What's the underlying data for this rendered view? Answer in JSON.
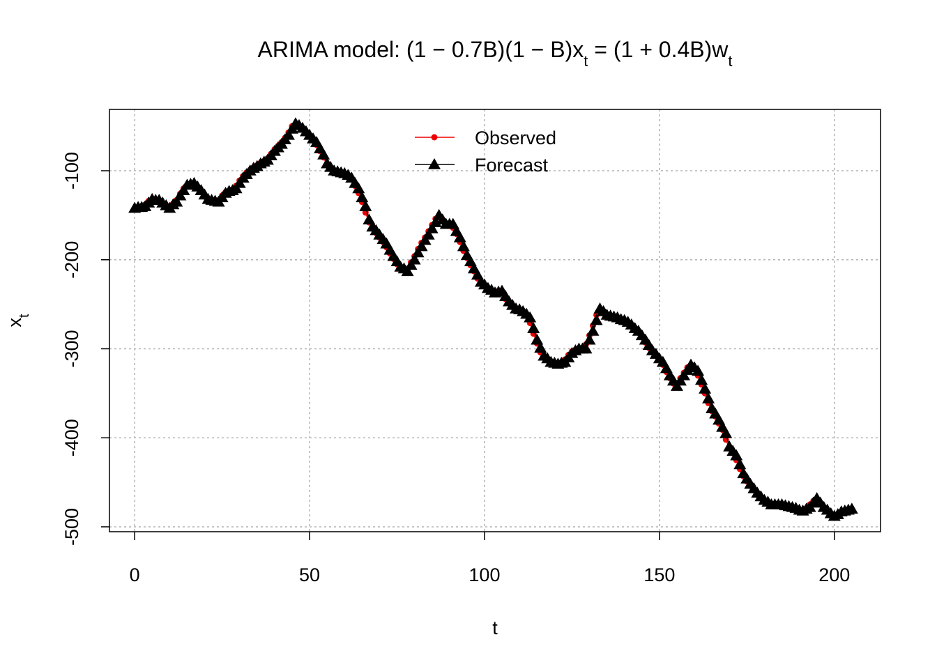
{
  "chart_data": {
    "type": "line",
    "title": [
      "ARIMA model: (1 − 0.7B)(1 − B)x",
      "t",
      " = (1 + 0.4B)w",
      "t"
    ],
    "xlabel": "t",
    "ylabel": [
      "x",
      "t"
    ],
    "xlim": [
      -7.2,
      213.2
    ],
    "ylim": [
      -505.5,
      -31.1
    ],
    "xticks": [
      0,
      50,
      100,
      150,
      200
    ],
    "yticks": [
      -500,
      -400,
      -300,
      -200,
      -100
    ],
    "grid": true,
    "legend": "top",
    "series": [
      {
        "name": "Observed",
        "color": "#ee0000",
        "marker": "circle",
        "x": [
          0,
          1,
          2,
          3,
          4,
          5,
          6,
          7,
          8,
          9,
          10,
          11,
          12,
          13,
          14,
          15,
          16,
          17,
          18,
          19,
          20,
          21,
          22,
          23,
          24,
          25,
          26,
          27,
          28,
          29,
          30,
          31,
          32,
          33,
          34,
          35,
          36,
          37,
          38,
          39,
          40,
          41,
          42,
          43,
          44,
          45,
          46,
          47,
          48,
          49,
          50,
          51,
          52,
          53,
          54,
          55,
          56,
          57,
          58,
          59,
          60,
          61,
          62,
          63,
          64,
          65,
          66,
          67,
          68,
          69,
          70,
          71,
          72,
          73,
          74,
          75,
          76,
          77,
          78,
          79,
          80,
          81,
          82,
          83,
          84,
          85,
          86,
          87,
          88,
          89,
          90,
          91,
          92,
          93,
          94,
          95,
          96,
          97,
          98,
          99,
          100,
          101,
          102,
          103,
          104,
          105,
          106,
          107,
          108,
          109,
          110,
          111,
          112,
          113,
          114,
          115,
          116,
          117,
          118,
          119,
          120,
          121,
          122,
          123,
          124,
          125,
          126,
          127,
          128,
          129,
          130,
          131,
          132,
          133,
          134,
          135,
          136,
          137,
          138,
          139,
          140,
          141,
          142,
          143,
          144,
          145,
          146,
          147,
          148,
          149,
          150,
          151,
          152,
          153,
          154,
          155,
          156,
          157,
          158,
          159,
          160,
          161,
          162,
          163,
          164,
          165,
          166,
          167,
          168,
          169,
          170,
          171,
          172,
          173,
          174,
          175,
          176,
          177,
          178,
          179,
          180,
          181,
          182,
          183,
          184,
          185,
          186,
          187,
          188,
          189,
          190,
          191,
          192,
          193,
          194,
          195,
          196,
          197,
          198,
          199,
          200
        ],
        "values": [
          -142,
          -141,
          -140,
          -138,
          -134,
          -133,
          -133,
          -134,
          -137,
          -140,
          -141,
          -137,
          -133,
          -126,
          -120,
          -116,
          -115,
          -115,
          -119,
          -124,
          -129,
          -132,
          -133,
          -134,
          -133,
          -128,
          -124,
          -123,
          -121,
          -117,
          -111,
          -106,
          -102,
          -99,
          -96,
          -94,
          -91,
          -89,
          -86,
          -81,
          -76,
          -72,
          -68,
          -63,
          -57,
          -50,
          -48,
          -50,
          -54,
          -58,
          -62,
          -66,
          -71,
          -78,
          -85,
          -94,
          -98,
          -100,
          -101,
          -102,
          -104,
          -106,
          -110,
          -117,
          -125,
          -135,
          -147,
          -158,
          -165,
          -170,
          -175,
          -180,
          -186,
          -193,
          -199,
          -205,
          -209,
          -211,
          -210,
          -203,
          -196,
          -188,
          -181,
          -175,
          -168,
          -161,
          -154,
          -152,
          -157,
          -160,
          -160,
          -164,
          -171,
          -180,
          -190,
          -198,
          -206,
          -213,
          -221,
          -226,
          -230,
          -233,
          -236,
          -236,
          -235,
          -238,
          -244,
          -249,
          -253,
          -255,
          -257,
          -260,
          -263,
          -271,
          -283,
          -294,
          -304,
          -310,
          -313,
          -315,
          -316,
          -316,
          -315,
          -312,
          -307,
          -303,
          -301,
          -300,
          -300,
          -295,
          -285,
          -274,
          -262,
          -257,
          -260,
          -262,
          -264,
          -265,
          -266,
          -267,
          -269,
          -271,
          -275,
          -278,
          -282,
          -287,
          -293,
          -299,
          -304,
          -308,
          -313,
          -318,
          -326,
          -333,
          -339,
          -339,
          -333,
          -327,
          -321,
          -320,
          -323,
          -330,
          -340,
          -350,
          -361,
          -370,
          -376,
          -384,
          -391,
          -402,
          -412,
          -417,
          -425,
          -435,
          -443,
          -449,
          -454,
          -459,
          -464,
          -468,
          -471,
          -473,
          -475,
          -475,
          -475,
          -475,
          -476,
          -477,
          -478,
          -480,
          -481,
          -481,
          -479,
          -475,
          -471,
          -470,
          -475,
          -480,
          -483,
          -486,
          -487
        ]
      },
      {
        "name": "Forecast",
        "color": "#000000",
        "marker": "triangle",
        "x": [
          0,
          1,
          2,
          3,
          4,
          5,
          6,
          7,
          8,
          9,
          10,
          11,
          12,
          13,
          14,
          15,
          16,
          17,
          18,
          19,
          20,
          21,
          22,
          23,
          24,
          25,
          26,
          27,
          28,
          29,
          30,
          31,
          32,
          33,
          34,
          35,
          36,
          37,
          38,
          39,
          40,
          41,
          42,
          43,
          44,
          45,
          46,
          47,
          48,
          49,
          50,
          51,
          52,
          53,
          54,
          55,
          56,
          57,
          58,
          59,
          60,
          61,
          62,
          63,
          64,
          65,
          66,
          67,
          68,
          69,
          70,
          71,
          72,
          73,
          74,
          75,
          76,
          77,
          78,
          79,
          80,
          81,
          82,
          83,
          84,
          85,
          86,
          87,
          88,
          89,
          90,
          91,
          92,
          93,
          94,
          95,
          96,
          97,
          98,
          99,
          100,
          101,
          102,
          103,
          104,
          105,
          106,
          107,
          108,
          109,
          110,
          111,
          112,
          113,
          114,
          115,
          116,
          117,
          118,
          119,
          120,
          121,
          122,
          123,
          124,
          125,
          126,
          127,
          128,
          129,
          130,
          131,
          132,
          133,
          134,
          135,
          136,
          137,
          138,
          139,
          140,
          141,
          142,
          143,
          144,
          145,
          146,
          147,
          148,
          149,
          150,
          151,
          152,
          153,
          154,
          155,
          156,
          157,
          158,
          159,
          160,
          161,
          162,
          163,
          164,
          165,
          166,
          167,
          168,
          169,
          170,
          171,
          172,
          173,
          174,
          175,
          176,
          177,
          178,
          179,
          180,
          181,
          182,
          183,
          184,
          185,
          186,
          187,
          188,
          189,
          190,
          191,
          192,
          193,
          194,
          195,
          196,
          197,
          198,
          199,
          200,
          201,
          202,
          203,
          204,
          205
        ],
        "values": [
          -142,
          -141,
          -141,
          -140,
          -136,
          -132,
          -133,
          -133,
          -136,
          -139,
          -142,
          -138,
          -135,
          -128,
          -122,
          -116,
          -115,
          -114,
          -118,
          -122,
          -127,
          -132,
          -133,
          -134,
          -135,
          -130,
          -125,
          -123,
          -122,
          -120,
          -114,
          -108,
          -104,
          -100,
          -97,
          -95,
          -92,
          -90,
          -88,
          -83,
          -78,
          -74,
          -70,
          -65,
          -60,
          -53,
          -47,
          -49,
          -52,
          -56,
          -60,
          -64,
          -68,
          -75,
          -82,
          -92,
          -96,
          -100,
          -101,
          -102,
          -103,
          -105,
          -108,
          -114,
          -120,
          -130,
          -140,
          -155,
          -163,
          -167,
          -172,
          -177,
          -182,
          -189,
          -196,
          -202,
          -208,
          -210,
          -213,
          -206,
          -200,
          -192,
          -185,
          -178,
          -172,
          -165,
          -158,
          -150,
          -155,
          -160,
          -160,
          -160,
          -168,
          -175,
          -185,
          -195,
          -202,
          -210,
          -217,
          -225,
          -228,
          -232,
          -234,
          -237,
          -236,
          -235,
          -241,
          -247,
          -251,
          -255,
          -256,
          -258,
          -261,
          -265,
          -277,
          -290,
          -299,
          -308,
          -311,
          -315,
          -316,
          -317,
          -316,
          -315,
          -310,
          -305,
          -302,
          -300,
          -300,
          -300,
          -290,
          -280,
          -268,
          -255,
          -258,
          -262,
          -263,
          -264,
          -265,
          -267,
          -268,
          -270,
          -273,
          -277,
          -280,
          -285,
          -290,
          -296,
          -302,
          -306,
          -311,
          -315,
          -322,
          -330,
          -336,
          -342,
          -336,
          -330,
          -324,
          -318,
          -321,
          -325,
          -335,
          -345,
          -356,
          -367,
          -373,
          -380,
          -388,
          -395,
          -410,
          -415,
          -420,
          -430,
          -440,
          -446,
          -452,
          -457,
          -462,
          -466,
          -470,
          -472,
          -475,
          -475,
          -475,
          -475,
          -476,
          -477,
          -478,
          -479,
          -481,
          -482,
          -480,
          -478,
          -473,
          -468,
          -473,
          -478,
          -481,
          -485,
          -488,
          -486,
          -483,
          -482,
          -481,
          -480
        ]
      }
    ]
  }
}
